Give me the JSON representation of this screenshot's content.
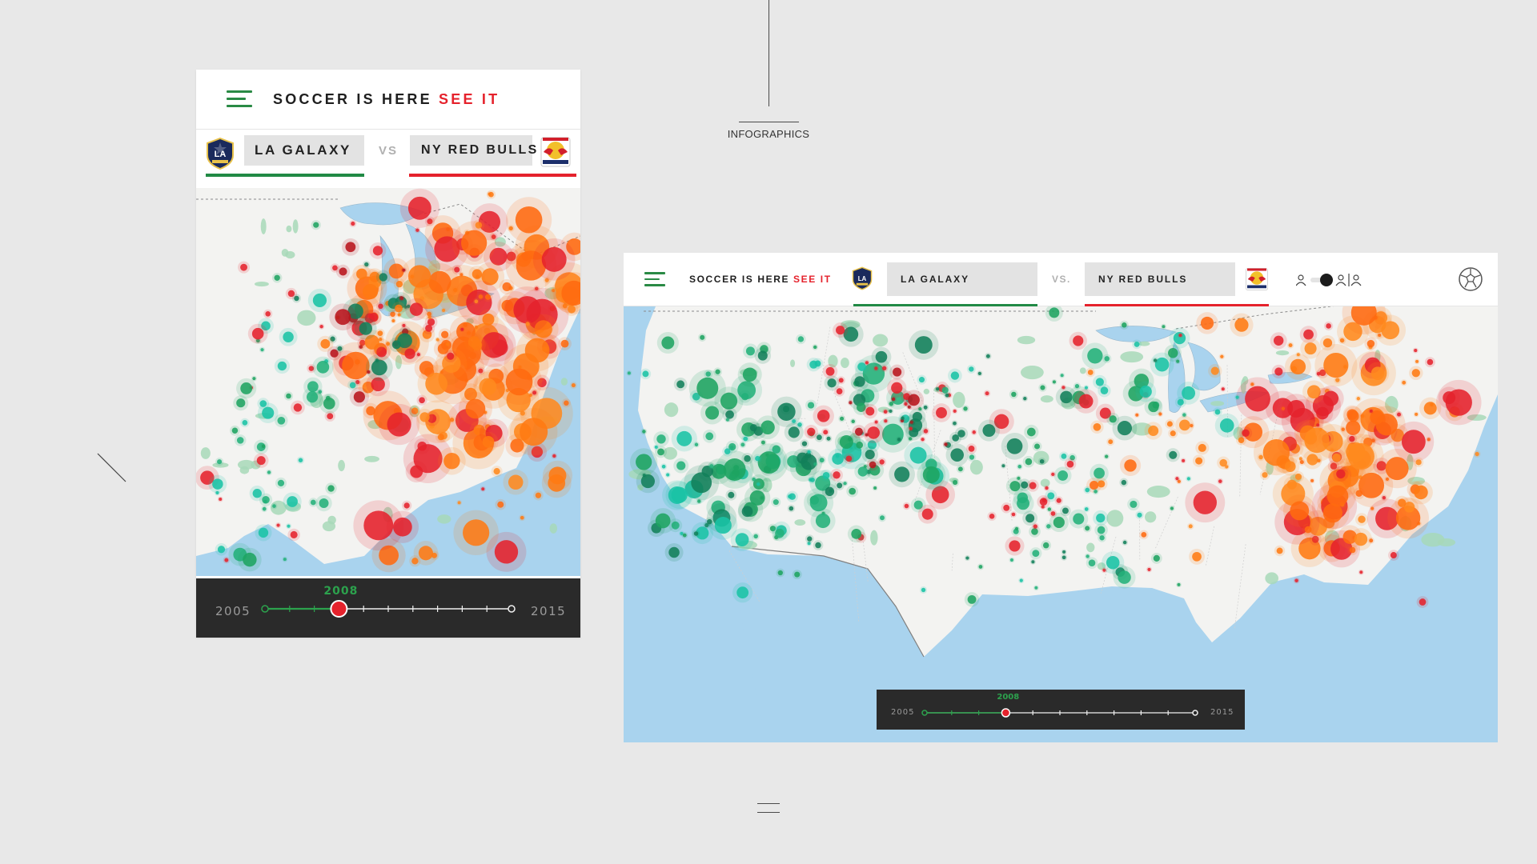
{
  "stage": {
    "label": "INFOGRAPHICS"
  },
  "app": {
    "title_main": "SOCCER IS HERE",
    "title_accent": "SEE IT",
    "home_team": "LA GALAXY",
    "versus_mobile": "VS",
    "versus_desktop": "VS.",
    "away_team": "NY RED BULLS",
    "home_logo_text": "LA"
  },
  "timeline": {
    "start_year": "2005",
    "end_year": "2015",
    "current_year": "2008",
    "progress": 0.3
  },
  "colors": {
    "home": "#218a45",
    "home_light": "#19c3a5",
    "away": "#e5222c",
    "away_light": "#ff7a12",
    "accent_text": "#e5222c",
    "water": "#a9d3ee",
    "land": "#f3f3f1"
  },
  "icons": [
    "menu-icon",
    "single-fan-icon",
    "group-fans-icon",
    "soccer-ball-icon"
  ]
}
